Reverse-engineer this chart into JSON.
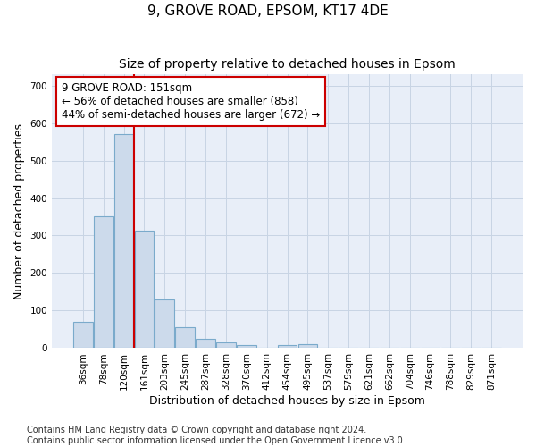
{
  "title": "9, GROVE ROAD, EPSOM, KT17 4DE",
  "subtitle": "Size of property relative to detached houses in Epsom",
  "xlabel": "Distribution of detached houses by size in Epsom",
  "ylabel": "Number of detached properties",
  "bar_color": "#ccdaeb",
  "bar_edgecolor": "#7aaacb",
  "background_color": "#ffffff",
  "axes_bg_color": "#e8eef8",
  "grid_color": "#c8d4e4",
  "categories": [
    "36sqm",
    "78sqm",
    "120sqm",
    "161sqm",
    "203sqm",
    "245sqm",
    "287sqm",
    "328sqm",
    "370sqm",
    "412sqm",
    "454sqm",
    "495sqm",
    "537sqm",
    "579sqm",
    "621sqm",
    "662sqm",
    "704sqm",
    "746sqm",
    "788sqm",
    "829sqm",
    "871sqm"
  ],
  "values": [
    70,
    352,
    570,
    313,
    130,
    57,
    25,
    15,
    8,
    0,
    8,
    10,
    0,
    0,
    0,
    0,
    0,
    0,
    0,
    0,
    0
  ],
  "ylim": [
    0,
    730
  ],
  "yticks": [
    0,
    100,
    200,
    300,
    400,
    500,
    600,
    700
  ],
  "property_line_x": 2.5,
  "annotation_text": "9 GROVE ROAD: 151sqm\n← 56% of detached houses are smaller (858)\n44% of semi-detached houses are larger (672) →",
  "annotation_box_color": "#ffffff",
  "annotation_box_edgecolor": "#cc0000",
  "vline_color": "#cc0000",
  "footnote": "Contains HM Land Registry data © Crown copyright and database right 2024.\nContains public sector information licensed under the Open Government Licence v3.0.",
  "title_fontsize": 11,
  "subtitle_fontsize": 10,
  "xlabel_fontsize": 9,
  "ylabel_fontsize": 9,
  "annotation_fontsize": 8.5,
  "tick_fontsize": 7.5,
  "footnote_fontsize": 7
}
